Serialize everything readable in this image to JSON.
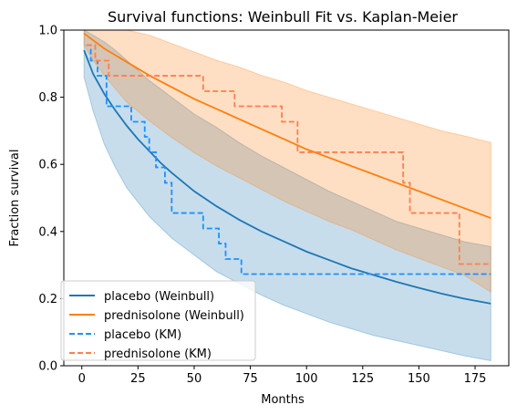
{
  "chart_data": {
    "type": "line",
    "title": "Survival functions: Weinbull Fit vs. Kaplan-Meier",
    "xlabel": "Months",
    "ylabel": "Fraction survival",
    "xlim": [
      -8,
      190
    ],
    "ylim": [
      0,
      1.0
    ],
    "xticks": [
      0,
      25,
      50,
      75,
      100,
      125,
      150,
      175
    ],
    "yticks": [
      0.0,
      0.2,
      0.4,
      0.6,
      0.8,
      1.0
    ],
    "xtick_labels": [
      "0",
      "25",
      "50",
      "75",
      "100",
      "125",
      "150",
      "175"
    ],
    "ytick_labels": [
      "0.0",
      "0.2",
      "0.4",
      "0.6",
      "0.8",
      "1.0"
    ],
    "legend_position": "lower-left",
    "grid": false,
    "series": [
      {
        "name": "placebo (Weinbull)",
        "style": "solid",
        "color": "#1f77b4",
        "x": [
          1,
          5,
          10,
          15,
          20,
          25,
          30,
          35,
          40,
          50,
          60,
          70,
          80,
          90,
          100,
          110,
          120,
          130,
          140,
          150,
          160,
          170,
          182
        ],
        "y": [
          0.94,
          0.87,
          0.81,
          0.76,
          0.715,
          0.675,
          0.64,
          0.605,
          0.575,
          0.52,
          0.475,
          0.435,
          0.4,
          0.37,
          0.34,
          0.315,
          0.29,
          0.27,
          0.25,
          0.232,
          0.215,
          0.2,
          0.185
        ]
      },
      {
        "name": "prednisolone (Weinbull)",
        "style": "solid",
        "color": "#ff7f0e",
        "x": [
          1,
          5,
          10,
          20,
          30,
          40,
          50,
          60,
          70,
          80,
          90,
          100,
          110,
          120,
          130,
          140,
          150,
          160,
          170,
          182
        ],
        "y": [
          0.99,
          0.97,
          0.945,
          0.905,
          0.865,
          0.83,
          0.795,
          0.765,
          0.735,
          0.705,
          0.675,
          0.645,
          0.62,
          0.595,
          0.57,
          0.545,
          0.52,
          0.495,
          0.47,
          0.44
        ]
      },
      {
        "name": "placebo (KM)",
        "style": "dashed",
        "color": "#1e90ff",
        "step": true,
        "x": [
          2,
          4,
          7,
          11,
          22,
          28,
          30,
          33,
          37,
          40,
          54,
          61,
          64,
          71,
          182
        ],
        "y": [
          0.955,
          0.909,
          0.864,
          0.773,
          0.727,
          0.682,
          0.636,
          0.591,
          0.545,
          0.455,
          0.409,
          0.364,
          0.318,
          0.273,
          0.273
        ]
      },
      {
        "name": "prednisolone (KM)",
        "style": "dashed",
        "color": "#ff7f50",
        "step": true,
        "x": [
          2,
          6,
          12,
          54,
          68,
          89,
          96,
          143,
          146,
          168,
          182
        ],
        "y": [
          0.955,
          0.909,
          0.864,
          0.818,
          0.773,
          0.727,
          0.636,
          0.545,
          0.455,
          0.303,
          0.303
        ]
      }
    ],
    "bands": [
      {
        "of": "placebo (Weinbull)",
        "color": "#1f77b4",
        "opacity": 0.25,
        "x": [
          1,
          5,
          10,
          15,
          20,
          30,
          40,
          50,
          60,
          70,
          80,
          90,
          100,
          110,
          120,
          130,
          140,
          150,
          160,
          170,
          182
        ],
        "upper": [
          1.0,
          0.985,
          0.965,
          0.94,
          0.91,
          0.85,
          0.8,
          0.75,
          0.71,
          0.665,
          0.625,
          0.59,
          0.555,
          0.52,
          0.49,
          0.46,
          0.43,
          0.41,
          0.39,
          0.37,
          0.355
        ],
        "lower": [
          0.86,
          0.76,
          0.66,
          0.59,
          0.53,
          0.445,
          0.38,
          0.33,
          0.28,
          0.245,
          0.21,
          0.18,
          0.155,
          0.13,
          0.11,
          0.09,
          0.075,
          0.06,
          0.045,
          0.03,
          0.015
        ]
      },
      {
        "of": "prednisolone (Weinbull)",
        "color": "#ff7f0e",
        "opacity": 0.25,
        "x": [
          1,
          5,
          10,
          15,
          20,
          30,
          40,
          50,
          60,
          70,
          80,
          90,
          100,
          110,
          120,
          130,
          140,
          150,
          160,
          170,
          182
        ],
        "upper": [
          1.0,
          1.0,
          1.0,
          1.0,
          1.0,
          0.985,
          0.96,
          0.935,
          0.91,
          0.89,
          0.865,
          0.845,
          0.82,
          0.8,
          0.78,
          0.76,
          0.74,
          0.72,
          0.7,
          0.685,
          0.665
        ],
        "lower": [
          0.955,
          0.91,
          0.865,
          0.825,
          0.785,
          0.73,
          0.68,
          0.635,
          0.595,
          0.56,
          0.525,
          0.49,
          0.46,
          0.43,
          0.405,
          0.375,
          0.345,
          0.32,
          0.295,
          0.27,
          0.22
        ]
      }
    ]
  }
}
